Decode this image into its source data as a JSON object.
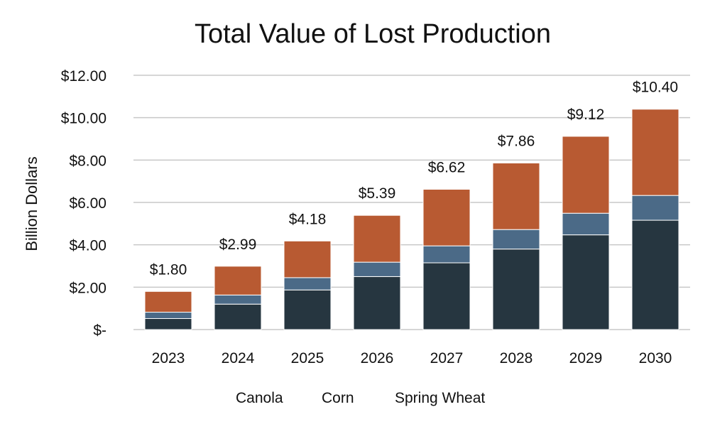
{
  "chart_data": {
    "type": "bar",
    "stacked": true,
    "title": "Total Value of Lost Production",
    "ylabel": "Billion Dollars",
    "xlabel": "",
    "ylim": [
      0,
      12
    ],
    "yticks": [
      0,
      2,
      4,
      6,
      8,
      10,
      12
    ],
    "ytick_labels": [
      "$-",
      "$2.00",
      "$4.00",
      "$6.00",
      "$8.00",
      "$10.00",
      "$12.00"
    ],
    "grid": true,
    "legend_position": "bottom",
    "categories": [
      "2023",
      "2024",
      "2025",
      "2026",
      "2027",
      "2028",
      "2029",
      "2030"
    ],
    "series": [
      {
        "name": "Canola",
        "color": "#263640",
        "values": [
          0.52,
          1.2,
          1.87,
          2.5,
          3.15,
          3.8,
          4.47,
          5.16
        ]
      },
      {
        "name": "Corn",
        "color": "#4b6a87",
        "values": [
          0.3,
          0.43,
          0.58,
          0.68,
          0.8,
          0.92,
          1.02,
          1.17
        ]
      },
      {
        "name": "Spring Wheat",
        "color": "#b85a32",
        "values": [
          0.98,
          1.36,
          1.73,
          2.21,
          2.67,
          3.14,
          3.63,
          4.07
        ]
      }
    ],
    "totals": [
      1.8,
      2.99,
      4.18,
      5.39,
      6.62,
      7.86,
      9.12,
      10.4
    ],
    "total_labels": [
      "$1.80",
      "$2.99",
      "$4.18",
      "$5.39",
      "$6.62",
      "$7.86",
      "$9.12",
      "$10.40"
    ]
  }
}
